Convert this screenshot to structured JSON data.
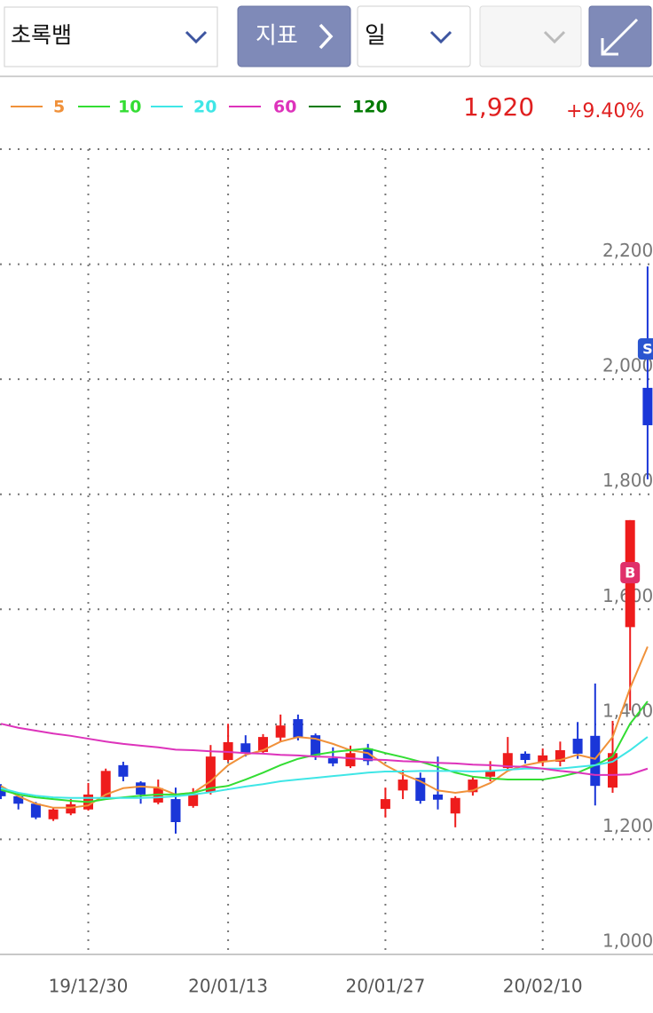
{
  "header": {
    "stock": "초록뱀",
    "indicator": "지표",
    "period": "일",
    "price": "1,920",
    "change": "+9.40%"
  },
  "chart_data": {
    "type": "candlestick",
    "categories": [
      null,
      null,
      null,
      null,
      null,
      "19/12/30",
      null,
      null,
      null,
      null,
      null,
      null,
      null,
      "20/01/13",
      null,
      null,
      null,
      null,
      null,
      null,
      null,
      null,
      "20/01/27",
      null,
      null,
      null,
      null,
      null,
      null,
      null,
      null,
      "20/02/10",
      null,
      null,
      null,
      null,
      null,
      null
    ],
    "open": [
      1290,
      1275,
      1262,
      1235,
      1245,
      1252,
      1273,
      1329,
      1299,
      1264,
      1270,
      1258,
      1282,
      1338,
      1367,
      1352,
      1377,
      1409,
      1381,
      1341,
      1327,
      1358,
      1253,
      1285,
      1307,
      1278,
      1245,
      1282,
      1309,
      1324,
      1349,
      1335,
      1335,
      1375,
      1380,
      1290,
      1569,
      1985
    ],
    "high": [
      1296,
      1281,
      1265,
      1256,
      1270,
      1298,
      1323,
      1335,
      1301,
      1304,
      1290,
      1289,
      1364,
      1401,
      1381,
      1383,
      1417,
      1417,
      1384,
      1360,
      1363,
      1366,
      1290,
      1321,
      1316,
      1344,
      1275,
      1310,
      1336,
      1378,
      1353,
      1358,
      1370,
      1404,
      1471,
      1406,
      1755,
      2196
    ],
    "low": [
      1270,
      1252,
      1235,
      1232,
      1242,
      1250,
      1273,
      1301,
      1262,
      1261,
      1210,
      1255,
      1278,
      1335,
      1344,
      1350,
      1370,
      1372,
      1338,
      1327,
      1324,
      1329,
      1238,
      1270,
      1262,
      1252,
      1221,
      1276,
      1301,
      1318,
      1332,
      1327,
      1327,
      1340,
      1259,
      1281,
      1424,
      1826
    ],
    "close": [
      1275,
      1262,
      1238,
      1252,
      1261,
      1278,
      1319,
      1309,
      1278,
      1289,
      1230,
      1278,
      1344,
      1369,
      1349,
      1378,
      1398,
      1377,
      1346,
      1332,
      1350,
      1336,
      1270,
      1304,
      1267,
      1269,
      1272,
      1304,
      1319,
      1350,
      1338,
      1346,
      1355,
      1349,
      1293,
      1350,
      1755,
      1920
    ],
    "up_color": "#ee1c1c",
    "down_color": "#1a36d8",
    "series": [
      {
        "name": "5",
        "color": "#f0913a",
        "values": [
          1293,
          1275,
          1262,
          1255,
          1255,
          1259,
          1278,
          1289,
          1292,
          1290,
          1278,
          1281,
          1301,
          1329,
          1347,
          1355,
          1370,
          1378,
          1375,
          1366,
          1355,
          1350,
          1329,
          1313,
          1301,
          1285,
          1281,
          1285,
          1298,
          1319,
          1329,
          1335,
          1338,
          1347,
          1340,
          1378,
          1463,
          1535
        ]
      },
      {
        "name": "10",
        "color": "#33dd33",
        "values": [
          1286,
          1278,
          1273,
          1270,
          1267,
          1265,
          1270,
          1273,
          1276,
          1278,
          1278,
          1281,
          1289,
          1293,
          1304,
          1316,
          1329,
          1340,
          1347,
          1352,
          1355,
          1358,
          1350,
          1343,
          1335,
          1326,
          1316,
          1309,
          1306,
          1304,
          1304,
          1304,
          1309,
          1316,
          1329,
          1344,
          1401,
          1440
        ]
      },
      {
        "name": "20",
        "color": "#3fe6e6",
        "values": [
          1289,
          1281,
          1276,
          1273,
          1272,
          1272,
          1272,
          1272,
          1272,
          1273,
          1275,
          1278,
          1282,
          1287,
          1292,
          1296,
          1301,
          1304,
          1307,
          1310,
          1313,
          1316,
          1318,
          1318,
          1319,
          1319,
          1319,
          1318,
          1319,
          1321,
          1323,
          1323,
          1323,
          1326,
          1329,
          1335,
          1355,
          1378
        ]
      },
      {
        "name": "60",
        "color": "#dd33bb",
        "values": [
          1401,
          1394,
          1389,
          1384,
          1380,
          1375,
          1370,
          1366,
          1363,
          1360,
          1356,
          1355,
          1353,
          1352,
          1350,
          1349,
          1347,
          1346,
          1344,
          1343,
          1341,
          1339,
          1338,
          1336,
          1335,
          1333,
          1332,
          1330,
          1329,
          1327,
          1326,
          1323,
          1319,
          1316,
          1312,
          1312,
          1313,
          1323
        ]
      },
      {
        "name": "120",
        "color": "#007a00",
        "values": [
          null,
          null,
          null,
          null,
          null,
          null,
          null,
          null,
          null,
          null,
          null,
          null,
          null,
          null,
          null,
          null,
          null,
          null,
          null,
          null,
          null,
          null,
          null,
          null,
          null,
          null,
          null,
          null,
          null,
          null,
          null,
          null,
          null,
          null,
          null,
          null,
          null,
          null
        ]
      }
    ],
    "signals": [
      {
        "label": "B",
        "color": "#e0306a"
      },
      {
        "label": "S",
        "color": "#2a55d0"
      }
    ],
    "ylim": [
      1000,
      2400
    ],
    "yticks": [
      {
        "value": 1000,
        "label": "1,000"
      },
      {
        "value": 1200,
        "label": "1,200"
      },
      {
        "value": 1400,
        "label": "1,400"
      },
      {
        "value": 1600,
        "label": "1,600"
      },
      {
        "value": 1800,
        "label": "1,800"
      },
      {
        "value": 2000,
        "label": "2,000"
      },
      {
        "value": 2200,
        "label": "2,200"
      }
    ],
    "grid": true
  }
}
